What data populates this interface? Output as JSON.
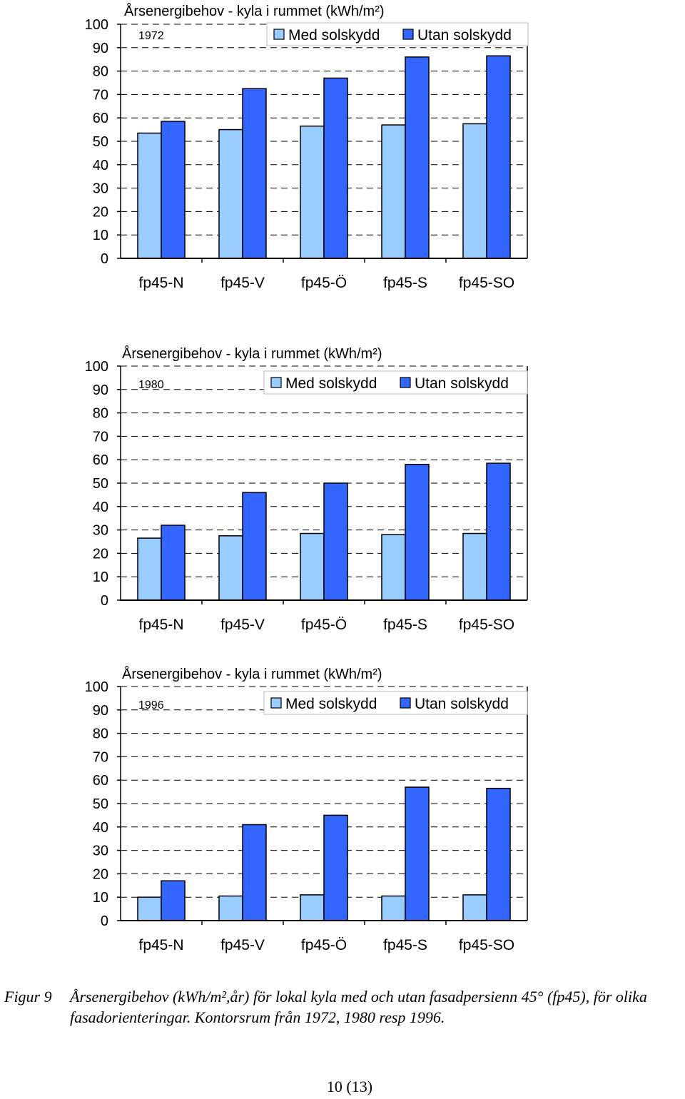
{
  "chart_data": [
    {
      "type": "bar",
      "title": "Årsenergibehov - kyla i rummet (kWh/m²)",
      "panel_label": "1972",
      "categories": [
        "fp45-N",
        "fp45-V",
        "fp45-Ö",
        "fp45-S",
        "fp45-SO"
      ],
      "series": [
        {
          "name": "Med solskydd",
          "values": [
            53.5,
            55,
            56.5,
            57,
            57.5
          ]
        },
        {
          "name": "Utan solskydd",
          "values": [
            58.5,
            72.5,
            77,
            86,
            86.5
          ]
        }
      ],
      "yticks": [
        "0",
        "10",
        "20",
        "30",
        "40",
        "50",
        "60",
        "70",
        "80",
        "90",
        "100"
      ],
      "ylim": [
        0,
        100
      ],
      "grid": "dashed horizontal",
      "legend": "top-right"
    },
    {
      "type": "bar",
      "title": "Årsenergibehov - kyla i rummet (kWh/m²)",
      "panel_label": "1980",
      "categories": [
        "fp45-N",
        "fp45-V",
        "fp45-Ö",
        "fp45-S",
        "fp45-SO"
      ],
      "series": [
        {
          "name": "Med solskydd",
          "values": [
            26.5,
            27.5,
            28.5,
            28,
            28.5
          ]
        },
        {
          "name": "Utan solskydd",
          "values": [
            32,
            46,
            50,
            58,
            58.5
          ]
        }
      ],
      "yticks": [
        "0",
        "10",
        "20",
        "30",
        "40",
        "50",
        "60",
        "70",
        "80",
        "90",
        "100"
      ],
      "ylim": [
        0,
        100
      ],
      "grid": "dashed horizontal",
      "legend": "top-right"
    },
    {
      "type": "bar",
      "title": "Årsenergibehov - kyla i rummet (kWh/m²)",
      "panel_label": "1996",
      "categories": [
        "fp45-N",
        "fp45-V",
        "fp45-Ö",
        "fp45-S",
        "fp45-SO"
      ],
      "series": [
        {
          "name": "Med solskydd",
          "values": [
            10,
            10.5,
            11,
            10.5,
            11
          ]
        },
        {
          "name": "Utan solskydd",
          "values": [
            17,
            41,
            45,
            57,
            56.5
          ]
        }
      ],
      "yticks": [
        "0",
        "10",
        "20",
        "30",
        "40",
        "50",
        "60",
        "70",
        "80",
        "90",
        "100"
      ],
      "ylim": [
        0,
        100
      ],
      "grid": "dashed horizontal",
      "legend": "top-right"
    }
  ],
  "colors": {
    "med_solskydd": "#99ccff",
    "utan_solskydd": "#3366ff",
    "outline": "#000000",
    "grid": "#000000"
  },
  "caption": {
    "label": "Figur 9",
    "text": "Årsenergibehov (kWh/m²,år) för lokal kyla med och utan fasadpersienn 45° (fp45), för olika fasadorienteringar. Kontorsrum från 1972, 1980 resp 1996."
  },
  "page_number": "10 (13)"
}
